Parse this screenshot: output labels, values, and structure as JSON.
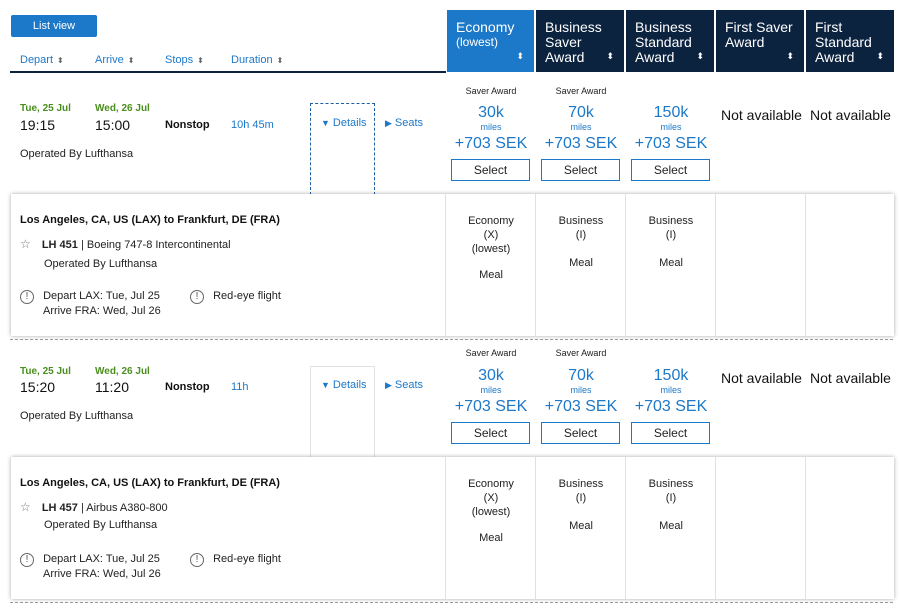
{
  "toolbar": {
    "list_view": "List view"
  },
  "sort": {
    "depart": "Depart",
    "arrive": "Arrive",
    "stops": "Stops",
    "duration": "Duration"
  },
  "cabins": [
    {
      "line1": "Economy",
      "line2": "(lowest)",
      "line3": ""
    },
    {
      "line1": "Business",
      "line2": "Saver",
      "line3": "Award"
    },
    {
      "line1": "Business",
      "line2": "Standard",
      "line3": "Award"
    },
    {
      "line1": "First Saver",
      "line2": "Award",
      "line3": ""
    },
    {
      "line1": "First",
      "line2": "Standard",
      "line3": "Award"
    }
  ],
  "flights": [
    {
      "depart_date": "Tue, 25 Jul",
      "arrive_date": "Wed, 26 Jul",
      "depart_time": "19:15",
      "arrive_time": "15:00",
      "stops": "Nonstop",
      "duration": "10h 45m",
      "operated": "Operated By Lufthansa",
      "details": "Details",
      "seats": "Seats",
      "awards": [
        {
          "label": "Saver Award",
          "miles": "30k",
          "unit": "miles",
          "sek": "+703 SEK",
          "select": "Select"
        },
        {
          "label": "Saver Award",
          "miles": "70k",
          "unit": "miles",
          "sek": "+703 SEK",
          "select": "Select"
        },
        {
          "label": "",
          "miles": "150k",
          "unit": "miles",
          "sek": "+703 SEK",
          "select": "Select"
        }
      ],
      "na1": "Not available",
      "na2": "Not available",
      "panel": {
        "route": "Los Angeles, CA, US (LAX) to Frankfurt, DE (FRA)",
        "flight_no": "LH 451",
        "aircraft": "| Boeing 747-8 Intercontinental",
        "operated": "Operated By Lufthansa",
        "depart_note": "Depart LAX: Tue, Jul 25",
        "arrive_note": "Arrive FRA: Wed, Jul 26",
        "redeye": "Red-eye flight",
        "fares": [
          {
            "l1": "Economy",
            "l2": "(X)",
            "l3": "(lowest)",
            "meal": "Meal"
          },
          {
            "l1": "Business",
            "l2": "(I)",
            "l3": "",
            "meal": "Meal"
          },
          {
            "l1": "Business",
            "l2": "(I)",
            "l3": "",
            "meal": "Meal"
          }
        ]
      }
    },
    {
      "depart_date": "Tue, 25 Jul",
      "arrive_date": "Wed, 26 Jul",
      "depart_time": "15:20",
      "arrive_time": "11:20",
      "stops": "Nonstop",
      "duration": "11h",
      "operated": "Operated By Lufthansa",
      "details": "Details",
      "seats": "Seats",
      "awards": [
        {
          "label": "Saver Award",
          "miles": "30k",
          "unit": "miles",
          "sek": "+703 SEK",
          "select": "Select"
        },
        {
          "label": "Saver Award",
          "miles": "70k",
          "unit": "miles",
          "sek": "+703 SEK",
          "select": "Select"
        },
        {
          "label": "",
          "miles": "150k",
          "unit": "miles",
          "sek": "+703 SEK",
          "select": "Select"
        }
      ],
      "na1": "Not available",
      "na2": "Not available",
      "panel": {
        "route": "Los Angeles, CA, US (LAX) to Frankfurt, DE (FRA)",
        "flight_no": "LH 457",
        "aircraft": "| Airbus A380-800",
        "operated": "Operated By Lufthansa",
        "depart_note": "Depart LAX: Tue, Jul 25",
        "arrive_note": "Arrive FRA: Wed, Jul 26",
        "redeye": "Red-eye flight",
        "fares": [
          {
            "l1": "Economy",
            "l2": "(X)",
            "l3": "(lowest)",
            "meal": "Meal"
          },
          {
            "l1": "Business",
            "l2": "(I)",
            "l3": "",
            "meal": "Meal"
          },
          {
            "l1": "Business",
            "l2": "(I)",
            "l3": "",
            "meal": "Meal"
          }
        ]
      }
    }
  ],
  "icons": {
    "info": "!",
    "star": "☆",
    "sort": "▲▼",
    "details_caret": "▼",
    "seats_caret": "▶"
  },
  "colors": {
    "accent": "#1c78c8",
    "navy": "#0c2340",
    "date_green": "#4a8f1e"
  }
}
